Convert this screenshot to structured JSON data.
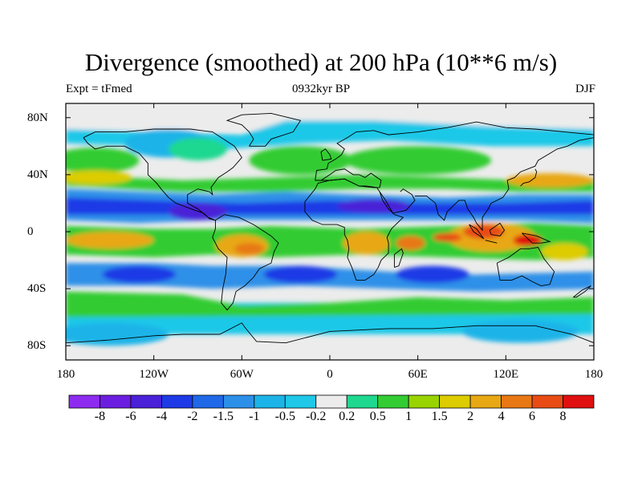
{
  "title": "Divergence (smoothed) at 200 hPa (10**6 m/s)",
  "subtitle_left": "Expt = tFmed",
  "subtitle_center": "0932kyr BP",
  "subtitle_right": "DJF",
  "lat_labels": [
    "80N",
    "40N",
    "0",
    "40S",
    "80S"
  ],
  "lon_labels": [
    "180",
    "120W",
    "60W",
    "0",
    "60E",
    "120E",
    "180"
  ],
  "colorbar": {
    "colors": [
      "#8d2cf0",
      "#6b1ee0",
      "#4a20d8",
      "#1e3ae6",
      "#1f68e8",
      "#2d90e8",
      "#1cb4e8",
      "#1fc8e8",
      "#ececec",
      "#1fd890",
      "#33cc33",
      "#99d400",
      "#dccc00",
      "#e8a814",
      "#e87814",
      "#e84c14",
      "#e01010"
    ],
    "labels": [
      "-8",
      "-6",
      "-4",
      "-2",
      "-1.5",
      "-1",
      "-0.5",
      "-0.2",
      "0.2",
      "0.5",
      "1",
      "1.5",
      "2",
      "4",
      "6",
      "8"
    ]
  }
}
